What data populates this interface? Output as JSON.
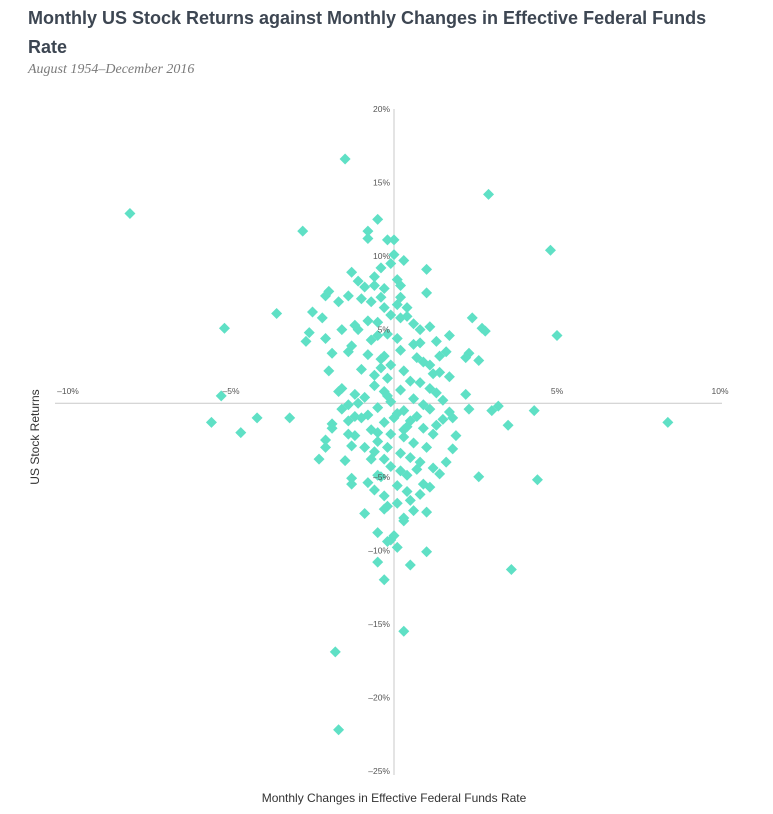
{
  "chart_data": {
    "type": "scatter",
    "title": "Monthly US Stock Returns against Monthly Changes in Effective Federal Funds Rate",
    "subtitle": "August 1954–December 2016",
    "xlabel": "Monthly Changes in Effective Federal Funds Rate",
    "ylabel": "US Stock Returns",
    "xlim": [
      -10,
      10
    ],
    "ylim": [
      -25,
      20
    ],
    "x_ticks": [
      {
        "value": -10,
        "label": "–10%"
      },
      {
        "value": -5,
        "label": "–5%"
      },
      {
        "value": 5,
        "label": "5%"
      },
      {
        "value": 10,
        "label": "10%"
      }
    ],
    "y_ticks": [
      {
        "value": 20,
        "label": "20%"
      },
      {
        "value": 15,
        "label": "15%"
      },
      {
        "value": 10,
        "label": "10%"
      },
      {
        "value": 5,
        "label": "5%"
      },
      {
        "value": -5,
        "label": "–5%"
      },
      {
        "value": -10,
        "label": "–10%"
      },
      {
        "value": -15,
        "label": "–15%"
      },
      {
        "value": -20,
        "label": "–20%"
      },
      {
        "value": -25,
        "label": "–25%"
      }
    ],
    "grid": false,
    "marker_color": "#5fe0c5",
    "points": [
      [
        -8.1,
        12.9
      ],
      [
        -1.5,
        16.6
      ],
      [
        2.9,
        14.2
      ],
      [
        4.8,
        10.4
      ],
      [
        -2.8,
        11.7
      ],
      [
        -0.5,
        12.5
      ],
      [
        -0.8,
        11.7
      ],
      [
        -0.8,
        11.2
      ],
      [
        -0.2,
        11.1
      ],
      [
        0,
        11.1
      ],
      [
        0,
        10.1
      ],
      [
        -1.3,
        8.9
      ],
      [
        -1.1,
        8.3
      ],
      [
        -0.6,
        8.6
      ],
      [
        0.2,
        8.0
      ],
      [
        1,
        9.1
      ],
      [
        -0.3,
        7.8
      ],
      [
        1,
        7.5
      ],
      [
        -3.6,
        6.1
      ],
      [
        -2.5,
        6.2
      ],
      [
        -2.1,
        7.3
      ],
      [
        -2,
        7.6
      ],
      [
        -1.7,
        6.9
      ],
      [
        -1.4,
        7.3
      ],
      [
        -1,
        7.1
      ],
      [
        -0.7,
        6.9
      ],
      [
        -0.4,
        7.2
      ],
      [
        0.4,
        6.5
      ],
      [
        -5.2,
        5.1
      ],
      [
        -2.6,
        4.8
      ],
      [
        -2.2,
        5.8
      ],
      [
        -1.6,
        5.0
      ],
      [
        -1.2,
        5.3
      ],
      [
        -0.8,
        5.6
      ],
      [
        0.6,
        5.4
      ],
      [
        1.1,
        5.2
      ],
      [
        1.7,
        4.6
      ],
      [
        2.4,
        5.8
      ],
      [
        2.7,
        5.1
      ],
      [
        2.8,
        4.9
      ],
      [
        5,
        4.6
      ],
      [
        -2.7,
        4.2
      ],
      [
        -2.1,
        4.4
      ],
      [
        -1.9,
        3.4
      ],
      [
        -1.4,
        3.5
      ],
      [
        -0.5,
        4.6
      ],
      [
        0.8,
        4.1
      ],
      [
        1.3,
        4.2
      ],
      [
        1.6,
        3.5
      ],
      [
        2.3,
        3.4
      ],
      [
        2.6,
        2.9
      ],
      [
        2.2,
        3.1
      ],
      [
        -5.3,
        0.5
      ],
      [
        -2,
        2.2
      ],
      [
        -1.7,
        0.8
      ],
      [
        -1.2,
        0.6
      ],
      [
        -0.6,
        1.9
      ],
      [
        1.4,
        2.1
      ],
      [
        1.7,
        1.8
      ],
      [
        2.2,
        0.6
      ],
      [
        3.2,
        -0.2
      ],
      [
        3,
        -0.5
      ],
      [
        2.3,
        -0.4
      ],
      [
        4.3,
        -0.5
      ],
      [
        1.1,
        -0.4
      ],
      [
        -1.6,
        -0.4
      ],
      [
        -1.2,
        -0.9
      ],
      [
        -4.2,
        -1.0
      ],
      [
        -3.2,
        -1.0
      ],
      [
        -5.6,
        -1.3
      ],
      [
        -4.7,
        -2.0
      ],
      [
        -1.9,
        -1.4
      ],
      [
        -1.9,
        -1.7
      ],
      [
        -1.4,
        -1.2
      ],
      [
        0.5,
        -1.2
      ],
      [
        1.5,
        -1.1
      ],
      [
        1.8,
        -1.0
      ],
      [
        3.5,
        -1.5
      ],
      [
        8.4,
        -1.3
      ],
      [
        -2.1,
        -2.5
      ],
      [
        -1.4,
        -2.1
      ],
      [
        -0.5,
        -2.0
      ],
      [
        1.2,
        -2.1
      ],
      [
        1.9,
        -2.2
      ],
      [
        -1.3,
        -2.9
      ],
      [
        -2.3,
        -3.8
      ],
      [
        -2.1,
        -3.0
      ],
      [
        -1.5,
        -3.9
      ],
      [
        -0.7,
        -3.8
      ],
      [
        0.8,
        -4.0
      ],
      [
        1.8,
        -3.1
      ],
      [
        1.6,
        -4.0
      ],
      [
        -1.3,
        -5.5
      ],
      [
        -1.3,
        -5.1
      ],
      [
        -0.5,
        -4.9
      ],
      [
        0.4,
        -4.9
      ],
      [
        2.6,
        -5.0
      ],
      [
        4.4,
        -5.2
      ],
      [
        -0.9,
        -7.5
      ],
      [
        -0.3,
        -7.2
      ],
      [
        0.6,
        -7.3
      ],
      [
        1.1,
        -5.7
      ],
      [
        1.2,
        -4.4
      ],
      [
        1.4,
        -4.8
      ],
      [
        0.3,
        -8.0
      ],
      [
        1,
        -7.4
      ],
      [
        0.3,
        -7.8
      ],
      [
        -0.5,
        -8.8
      ],
      [
        -0.2,
        -9.4
      ],
      [
        0,
        -9.0
      ],
      [
        0.1,
        -9.8
      ],
      [
        -0.1,
        -9.3
      ],
      [
        1,
        -10.1
      ],
      [
        0.5,
        -11.0
      ],
      [
        -0.5,
        -10.8
      ],
      [
        -0.3,
        -12.0
      ],
      [
        3.6,
        -11.3
      ],
      [
        0.3,
        -15.5
      ],
      [
        -1.8,
        -16.9
      ],
      [
        -1.7,
        -22.2
      ],
      [
        -0.1,
        9.5
      ],
      [
        -0.4,
        9.2
      ],
      [
        0.3,
        9.7
      ],
      [
        -0.6,
        8.0
      ],
      [
        -0.9,
        7.9
      ],
      [
        0.1,
        8.4
      ],
      [
        -0.3,
        6.5
      ],
      [
        0.1,
        6.7
      ],
      [
        0.2,
        7.2
      ],
      [
        -0.1,
        6.0
      ],
      [
        0.2,
        5.8
      ],
      [
        -0.5,
        5.5
      ],
      [
        0.4,
        5.9
      ],
      [
        -0.2,
        4.7
      ],
      [
        0.1,
        4.4
      ],
      [
        -0.7,
        4.3
      ],
      [
        0.6,
        4.0
      ],
      [
        0.2,
        3.6
      ],
      [
        -0.3,
        3.2
      ],
      [
        -0.8,
        3.3
      ],
      [
        0.7,
        3.1
      ],
      [
        0.9,
        2.8
      ],
      [
        -0.4,
        2.4
      ],
      [
        0.3,
        2.2
      ],
      [
        -1,
        2.3
      ],
      [
        1.1,
        2.6
      ],
      [
        -0.2,
        1.7
      ],
      [
        0.5,
        1.5
      ],
      [
        -0.6,
        1.2
      ],
      [
        0.8,
        1.4
      ],
      [
        -0.3,
        0.8
      ],
      [
        0.2,
        0.9
      ],
      [
        1.3,
        0.7
      ],
      [
        -0.9,
        0.4
      ],
      [
        0.6,
        0.3
      ],
      [
        -0.1,
        0.1
      ],
      [
        -1.1,
        0
      ],
      [
        0.9,
        -0.1
      ],
      [
        -0.5,
        -0.3
      ],
      [
        0.3,
        -0.5
      ],
      [
        -0.8,
        -0.8
      ],
      [
        0.7,
        -0.9
      ],
      [
        0,
        -1.0
      ],
      [
        -0.3,
        -1.3
      ],
      [
        0.4,
        -1.6
      ],
      [
        -0.7,
        -1.8
      ],
      [
        0.9,
        -1.7
      ],
      [
        -0.1,
        -2.1
      ],
      [
        0.3,
        -2.3
      ],
      [
        -0.5,
        -2.6
      ],
      [
        0.6,
        -2.7
      ],
      [
        -0.2,
        -3.0
      ],
      [
        0.2,
        -3.4
      ],
      [
        -0.6,
        -3.3
      ],
      [
        1,
        -3.0
      ],
      [
        -0.3,
        -3.8
      ],
      [
        0.5,
        -3.7
      ],
      [
        -0.1,
        -4.3
      ],
      [
        0.2,
        -4.6
      ],
      [
        -0.4,
        -5.0
      ],
      [
        0.7,
        -4.5
      ],
      [
        -0.8,
        -5.4
      ],
      [
        0.1,
        -5.6
      ],
      [
        0.4,
        -6.0
      ],
      [
        -0.3,
        -6.3
      ],
      [
        -0.6,
        -5.9
      ],
      [
        0.8,
        -6.2
      ],
      [
        0.1,
        -6.8
      ],
      [
        -0.2,
        -7.0
      ],
      [
        0.5,
        -6.6
      ],
      [
        -1.4,
        -0.1
      ],
      [
        1.5,
        0.2
      ],
      [
        -1.6,
        1.0
      ],
      [
        1.7,
        -0.6
      ],
      [
        1.3,
        -1.5
      ],
      [
        -1.2,
        -2.2
      ],
      [
        1.2,
        2.0
      ],
      [
        -1.3,
        3.9
      ],
      [
        1.4,
        3.2
      ],
      [
        -1.1,
        5.0
      ],
      [
        1.1,
        1.0
      ],
      [
        -1.0,
        -1.0
      ],
      [
        0.8,
        5.0
      ],
      [
        0.9,
        -5.5
      ],
      [
        -0.9,
        -3.0
      ],
      [
        -0.4,
        3.0
      ],
      [
        0.3,
        -1.8
      ],
      [
        -0.2,
        0.5
      ],
      [
        0.1,
        -0.7
      ],
      [
        -0.1,
        2.6
      ]
    ]
  }
}
